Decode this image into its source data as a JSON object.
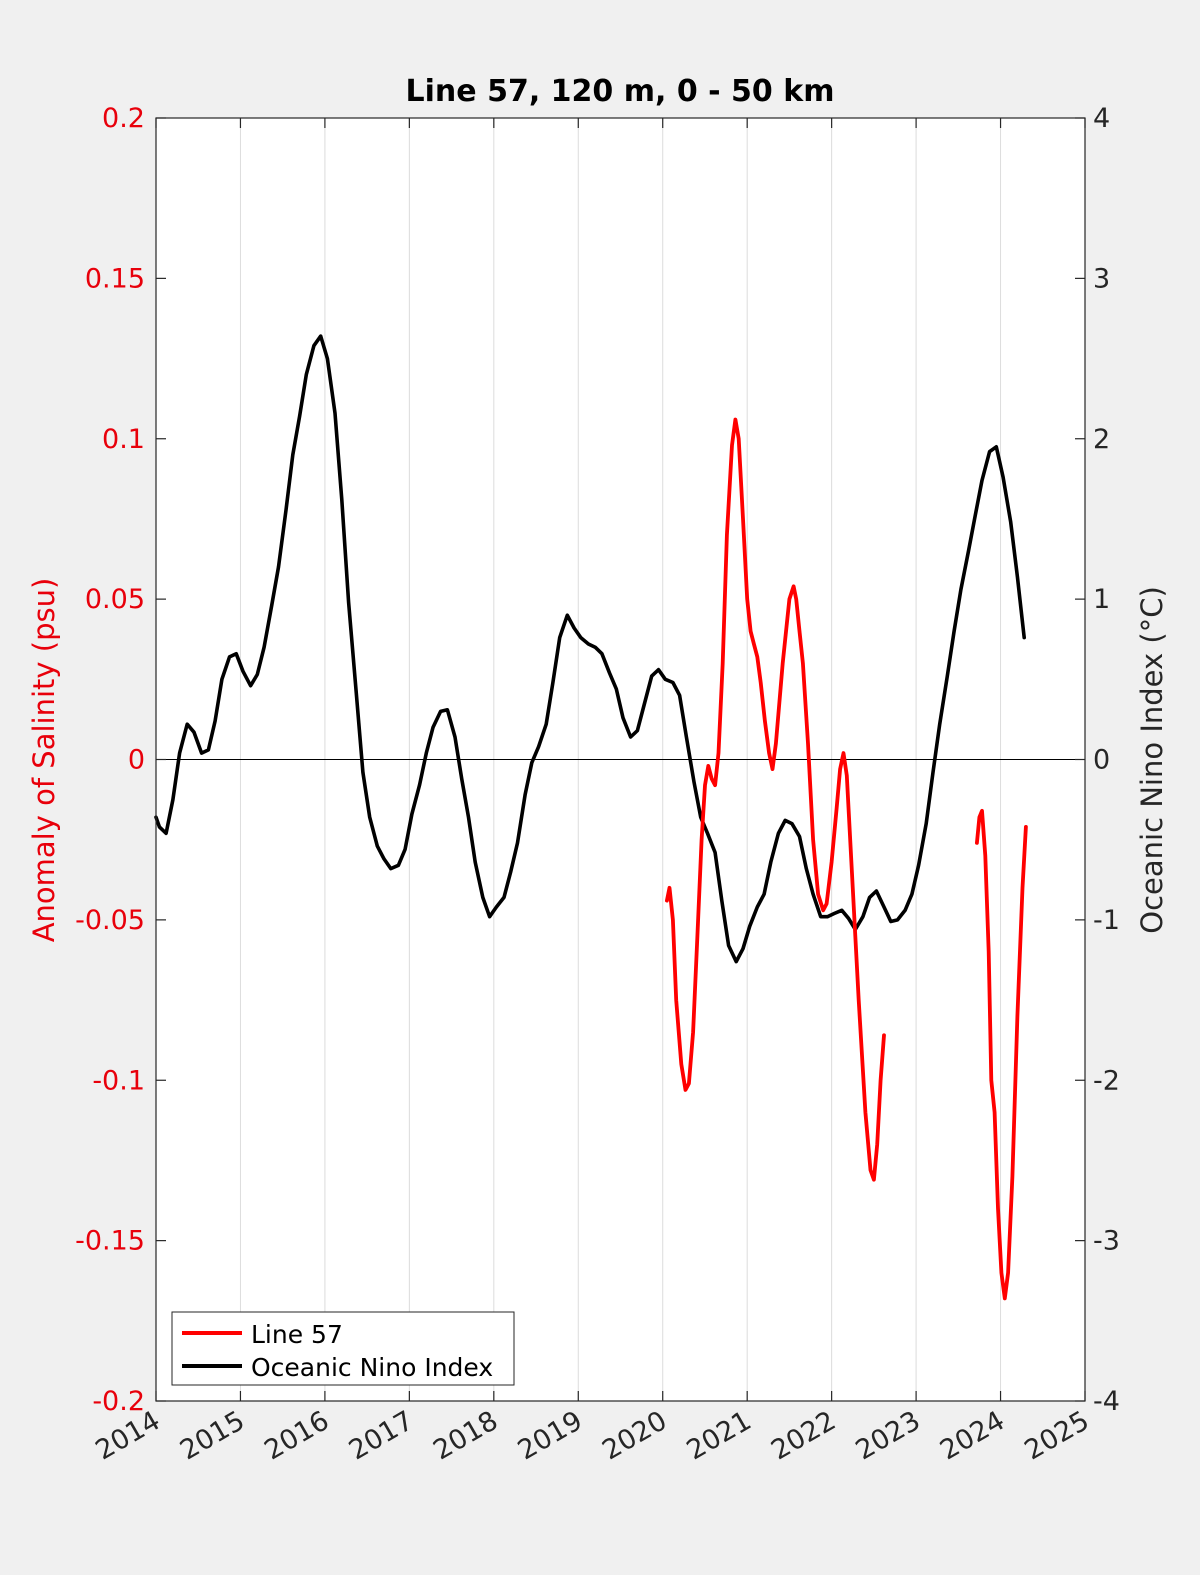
{
  "chart_data": {
    "type": "line",
    "title": "Line 57, 120 m, 0 - 50 km",
    "xlabel": "",
    "ylabel_left": "Anomaly of Salinity (psu)",
    "ylabel_right": "Oceanic Nino Index (°C)",
    "xlim": [
      2014,
      2025
    ],
    "ylim_left": [
      -0.2,
      0.2
    ],
    "ylim_right": [
      -4,
      4
    ],
    "x_ticks": [
      "2014",
      "2015",
      "2016",
      "2017",
      "2018",
      "2019",
      "2020",
      "2021",
      "2022",
      "2023",
      "2024",
      "2025"
    ],
    "y_left_ticks": [
      "-0.2",
      "-0.15",
      "-0.1",
      "-0.05",
      "0",
      "0.05",
      "0.1",
      "0.15",
      "0.2"
    ],
    "y_right_ticks": [
      "-4",
      "-3",
      "-2",
      "-1",
      "0",
      "1",
      "2",
      "3",
      "4"
    ],
    "vertical_grid": true,
    "zero_line": true,
    "legend_position": "bottom-left",
    "colors": {
      "left_axis": "#e8000b",
      "right_axis": "#000000",
      "background": "#f0f0f0"
    },
    "series": [
      {
        "name": "Line 57",
        "axis": "left",
        "color": "#ff0000",
        "segments": [
          [
            [
              2020.05,
              -0.044
            ],
            [
              2020.08,
              -0.04
            ],
            [
              2020.12,
              -0.05
            ],
            [
              2020.16,
              -0.075
            ],
            [
              2020.22,
              -0.095
            ],
            [
              2020.27,
              -0.103
            ],
            [
              2020.31,
              -0.101
            ],
            [
              2020.36,
              -0.085
            ],
            [
              2020.41,
              -0.055
            ],
            [
              2020.46,
              -0.025
            ],
            [
              2020.5,
              -0.008
            ],
            [
              2020.54,
              -0.002
            ],
            [
              2020.58,
              -0.006
            ],
            [
              2020.62,
              -0.008
            ],
            [
              2020.66,
              0.002
            ],
            [
              2020.71,
              0.03
            ],
            [
              2020.76,
              0.07
            ],
            [
              2020.82,
              0.098
            ],
            [
              2020.86,
              0.106
            ],
            [
              2020.9,
              0.1
            ],
            [
              2020.95,
              0.075
            ],
            [
              2021.0,
              0.05
            ],
            [
              2021.04,
              0.04
            ],
            [
              2021.08,
              0.036
            ],
            [
              2021.12,
              0.032
            ],
            [
              2021.16,
              0.024
            ],
            [
              2021.21,
              0.012
            ],
            [
              2021.26,
              0.002
            ],
            [
              2021.3,
              -0.003
            ],
            [
              2021.34,
              0.005
            ],
            [
              2021.42,
              0.03
            ],
            [
              2021.5,
              0.05
            ],
            [
              2021.55,
              0.054
            ],
            [
              2021.58,
              0.05
            ],
            [
              2021.62,
              0.04
            ],
            [
              2021.66,
              0.03
            ],
            [
              2021.72,
              0.005
            ],
            [
              2021.78,
              -0.025
            ],
            [
              2021.84,
              -0.042
            ],
            [
              2021.9,
              -0.047
            ],
            [
              2021.94,
              -0.045
            ],
            [
              2022.0,
              -0.032
            ],
            [
              2022.06,
              -0.015
            ],
            [
              2022.1,
              -0.003
            ],
            [
              2022.14,
              0.002
            ],
            [
              2022.18,
              -0.005
            ],
            [
              2022.24,
              -0.035
            ],
            [
              2022.32,
              -0.075
            ],
            [
              2022.4,
              -0.11
            ],
            [
              2022.46,
              -0.128
            ],
            [
              2022.5,
              -0.131
            ],
            [
              2022.54,
              -0.12
            ],
            [
              2022.58,
              -0.1
            ],
            [
              2022.62,
              -0.086
            ]
          ],
          [
            [
              2023.72,
              -0.026
            ],
            [
              2023.75,
              -0.018
            ],
            [
              2023.78,
              -0.016
            ],
            [
              2023.82,
              -0.03
            ],
            [
              2023.86,
              -0.06
            ],
            [
              2023.89,
              -0.1
            ],
            [
              2023.93,
              -0.11
            ],
            [
              2023.97,
              -0.14
            ],
            [
              2024.01,
              -0.16
            ],
            [
              2024.05,
              -0.168
            ],
            [
              2024.09,
              -0.16
            ],
            [
              2024.14,
              -0.13
            ],
            [
              2024.2,
              -0.08
            ],
            [
              2024.26,
              -0.04
            ],
            [
              2024.3,
              -0.021
            ]
          ]
        ]
      },
      {
        "name": "Oceanic Nino Index",
        "axis": "right",
        "color": "#000000",
        "points": [
          [
            2014.0,
            -0.36
          ],
          [
            2014.04,
            -0.42
          ],
          [
            2014.12,
            -0.46
          ],
          [
            2014.2,
            -0.25
          ],
          [
            2014.28,
            0.04
          ],
          [
            2014.37,
            0.22
          ],
          [
            2014.45,
            0.17
          ],
          [
            2014.54,
            0.04
          ],
          [
            2014.62,
            0.06
          ],
          [
            2014.7,
            0.24
          ],
          [
            2014.78,
            0.5
          ],
          [
            2014.87,
            0.64
          ],
          [
            2014.95,
            0.66
          ],
          [
            2015.03,
            0.55
          ],
          [
            2015.12,
            0.46
          ],
          [
            2015.2,
            0.53
          ],
          [
            2015.28,
            0.7
          ],
          [
            2015.37,
            0.96
          ],
          [
            2015.45,
            1.2
          ],
          [
            2015.54,
            1.56
          ],
          [
            2015.62,
            1.9
          ],
          [
            2015.7,
            2.14
          ],
          [
            2015.78,
            2.4
          ],
          [
            2015.87,
            2.58
          ],
          [
            2015.95,
            2.64
          ],
          [
            2016.03,
            2.5
          ],
          [
            2016.12,
            2.16
          ],
          [
            2016.2,
            1.62
          ],
          [
            2016.28,
            0.98
          ],
          [
            2016.37,
            0.42
          ],
          [
            2016.45,
            -0.08
          ],
          [
            2016.53,
            -0.36
          ],
          [
            2016.62,
            -0.54
          ],
          [
            2016.7,
            -0.62
          ],
          [
            2016.78,
            -0.68
          ],
          [
            2016.87,
            -0.66
          ],
          [
            2016.95,
            -0.56
          ],
          [
            2017.03,
            -0.34
          ],
          [
            2017.12,
            -0.16
          ],
          [
            2017.2,
            0.04
          ],
          [
            2017.28,
            0.2
          ],
          [
            2017.37,
            0.3
          ],
          [
            2017.45,
            0.31
          ],
          [
            2017.54,
            0.14
          ],
          [
            2017.62,
            -0.12
          ],
          [
            2017.7,
            -0.36
          ],
          [
            2017.78,
            -0.64
          ],
          [
            2017.87,
            -0.86
          ],
          [
            2017.95,
            -0.98
          ],
          [
            2018.03,
            -0.92
          ],
          [
            2018.12,
            -0.86
          ],
          [
            2018.2,
            -0.7
          ],
          [
            2018.28,
            -0.52
          ],
          [
            2018.37,
            -0.22
          ],
          [
            2018.45,
            -0.02
          ],
          [
            2018.53,
            0.08
          ],
          [
            2018.62,
            0.22
          ],
          [
            2018.7,
            0.48
          ],
          [
            2018.78,
            0.76
          ],
          [
            2018.87,
            0.9
          ],
          [
            2018.95,
            0.82
          ],
          [
            2019.03,
            0.76
          ],
          [
            2019.12,
            0.72
          ],
          [
            2019.2,
            0.7
          ],
          [
            2019.28,
            0.66
          ],
          [
            2019.37,
            0.54
          ],
          [
            2019.45,
            0.44
          ],
          [
            2019.53,
            0.26
          ],
          [
            2019.62,
            0.14
          ],
          [
            2019.7,
            0.18
          ],
          [
            2019.78,
            0.34
          ],
          [
            2019.87,
            0.52
          ],
          [
            2019.95,
            0.56
          ],
          [
            2020.03,
            0.5
          ],
          [
            2020.12,
            0.48
          ],
          [
            2020.2,
            0.4
          ],
          [
            2020.28,
            0.14
          ],
          [
            2020.37,
            -0.14
          ],
          [
            2020.45,
            -0.36
          ],
          [
            2020.53,
            -0.46
          ],
          [
            2020.62,
            -0.58
          ],
          [
            2020.7,
            -0.88
          ],
          [
            2020.78,
            -1.16
          ],
          [
            2020.87,
            -1.26
          ],
          [
            2020.95,
            -1.18
          ],
          [
            2021.03,
            -1.04
          ],
          [
            2021.12,
            -0.92
          ],
          [
            2021.2,
            -0.84
          ],
          [
            2021.28,
            -0.64
          ],
          [
            2021.37,
            -0.46
          ],
          [
            2021.45,
            -0.38
          ],
          [
            2021.53,
            -0.4
          ],
          [
            2021.62,
            -0.48
          ],
          [
            2021.7,
            -0.68
          ],
          [
            2021.78,
            -0.84
          ],
          [
            2021.87,
            -0.98
          ],
          [
            2021.95,
            -0.98
          ],
          [
            2022.03,
            -0.96
          ],
          [
            2022.12,
            -0.94
          ],
          [
            2022.2,
            -0.99
          ],
          [
            2022.28,
            -1.06
          ],
          [
            2022.37,
            -0.98
          ],
          [
            2022.45,
            -0.86
          ],
          [
            2022.53,
            -0.82
          ],
          [
            2022.62,
            -0.92
          ],
          [
            2022.7,
            -1.01
          ],
          [
            2022.78,
            -1.0
          ],
          [
            2022.87,
            -0.94
          ],
          [
            2022.95,
            -0.84
          ],
          [
            2023.03,
            -0.66
          ],
          [
            2023.12,
            -0.4
          ],
          [
            2023.2,
            -0.08
          ],
          [
            2023.28,
            0.22
          ],
          [
            2023.37,
            0.52
          ],
          [
            2023.45,
            0.8
          ],
          [
            2023.53,
            1.06
          ],
          [
            2023.62,
            1.3
          ],
          [
            2023.7,
            1.52
          ],
          [
            2023.78,
            1.74
          ],
          [
            2023.87,
            1.92
          ],
          [
            2023.95,
            1.95
          ],
          [
            2024.03,
            1.76
          ],
          [
            2024.12,
            1.48
          ],
          [
            2024.2,
            1.14
          ],
          [
            2024.28,
            0.76
          ]
        ]
      }
    ]
  }
}
